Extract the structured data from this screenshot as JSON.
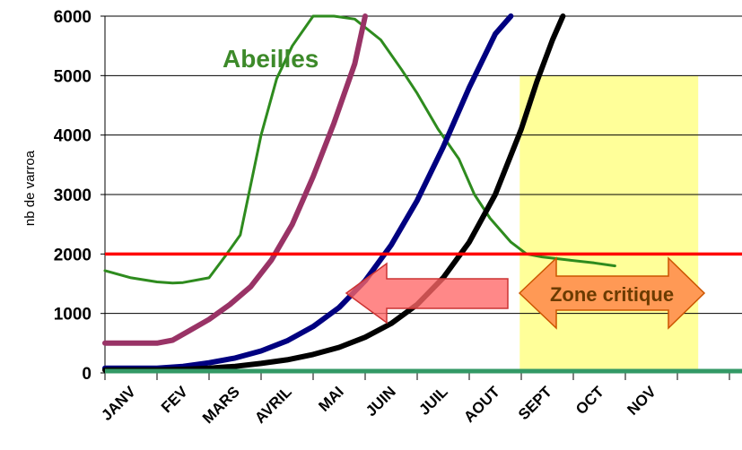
{
  "chart_data": {
    "type": "line",
    "xlabel": "",
    "ylabel": "nb de varroa",
    "ylim": [
      0,
      6000
    ],
    "yticks": [
      0,
      1000,
      2000,
      3000,
      4000,
      5000,
      6000
    ],
    "categories": [
      "JANV",
      "FEV",
      "MARS",
      "AVRIL",
      "MAI",
      "JUIN",
      "JUIL",
      "AOUT",
      "SEPT",
      "OCT",
      "NOV"
    ],
    "grid": true,
    "series": [
      {
        "name": "Abeilles",
        "color": "#2e8b1e",
        "x": [
          0,
          0.5,
          1.0,
          1.3,
          1.5,
          2.0,
          2.3,
          2.6,
          3.0,
          3.3,
          3.6,
          4.0,
          4.4,
          4.8,
          5.3,
          5.7,
          6.0,
          6.4,
          6.8,
          7.1,
          7.4,
          7.8,
          8.1,
          8.4,
          8.9,
          9.4,
          9.8
        ],
        "values": [
          1720,
          1600,
          1530,
          1510,
          1520,
          1600,
          1950,
          2320,
          4000,
          4950,
          5500,
          6000,
          6000,
          5950,
          5600,
          5100,
          4700,
          4100,
          3600,
          3000,
          2600,
          2200,
          2000,
          1950,
          1900,
          1850,
          1800
        ]
      },
      {
        "color": "#993366",
        "x": [
          0,
          0.5,
          1.0,
          1.3,
          1.6,
          2.0,
          2.4,
          2.8,
          3.2,
          3.6,
          4.0,
          4.4,
          4.8,
          5.0
        ],
        "values": [
          500,
          500,
          500,
          550,
          700,
          900,
          1150,
          1450,
          1900,
          2500,
          3300,
          4200,
          5200,
          6000
        ]
      },
      {
        "color": "#000080",
        "x": [
          0,
          0.5,
          1.0,
          1.5,
          2.0,
          2.5,
          3.0,
          3.5,
          4.0,
          4.5,
          5.0,
          5.5,
          6.0,
          6.5,
          7.0,
          7.5,
          7.8
        ],
        "values": [
          80,
          80,
          80,
          110,
          170,
          250,
          370,
          540,
          780,
          1100,
          1550,
          2150,
          2900,
          3800,
          4800,
          5700,
          6000
        ]
      },
      {
        "color": "#000000",
        "x": [
          0,
          0.5,
          1.0,
          1.5,
          2.0,
          2.5,
          3.0,
          3.5,
          4.0,
          4.5,
          5.0,
          5.5,
          6.0,
          6.5,
          7.0,
          7.5,
          8.0,
          8.3,
          8.6,
          8.8
        ],
        "values": [
          50,
          50,
          50,
          60,
          80,
          110,
          160,
          220,
          310,
          430,
          600,
          830,
          1150,
          1600,
          2200,
          3000,
          4100,
          4900,
          5600,
          6000
        ]
      }
    ],
    "thresholds": [
      {
        "value": 2000,
        "color": "#ff0000"
      },
      {
        "value": 0,
        "color": "#339966"
      }
    ],
    "zone": {
      "x_start": 7.97,
      "x_end": 11.4,
      "y_start": 0,
      "y_end": 5000,
      "color": "#ffff99"
    },
    "annotations": [
      {
        "text": "Abeilles",
        "color": "#3d8a2a"
      },
      {
        "text": "Zone critique",
        "color": "#6b3b00",
        "fill": "#ff9955"
      }
    ]
  }
}
